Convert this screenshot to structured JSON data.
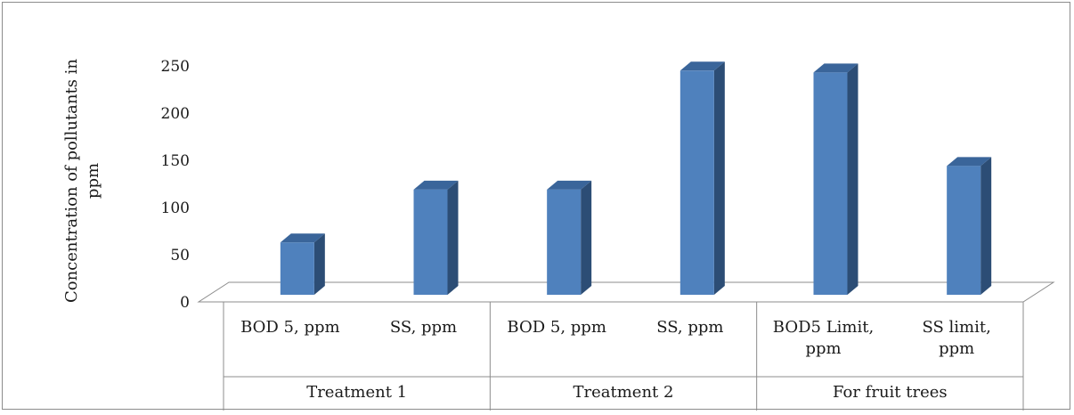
{
  "chart_data": {
    "type": "bar",
    "title": "",
    "ylabel_lines": [
      "Concentration of pollutants in",
      "ppm"
    ],
    "xlabel": "",
    "ylim": [
      0,
      250
    ],
    "yticks": [
      0,
      50,
      100,
      150,
      200,
      250
    ],
    "grid": false,
    "legend": "none",
    "bar_color": "#4f81bd",
    "categories": [
      {
        "label_lines": [
          "BOD 5, ppm"
        ],
        "group": "Treatment 1",
        "value": 63
      },
      {
        "label_lines": [
          "SS, ppm"
        ],
        "group": "Treatment 1",
        "value": 119
      },
      {
        "label_lines": [
          "BOD 5, ppm"
        ],
        "group": "Treatment 2",
        "value": 119
      },
      {
        "label_lines": [
          "SS, ppm"
        ],
        "group": "Treatment 2",
        "value": 245
      },
      {
        "label_lines": [
          "BOD5 Limit,",
          "ppm"
        ],
        "group": "For fruit trees",
        "value": 243
      },
      {
        "label_lines": [
          "SS limit,",
          "ppm"
        ],
        "group": "For fruit trees",
        "value": 144
      }
    ],
    "groups": [
      "Treatment 1",
      "Treatment 2",
      "For fruit trees"
    ]
  }
}
